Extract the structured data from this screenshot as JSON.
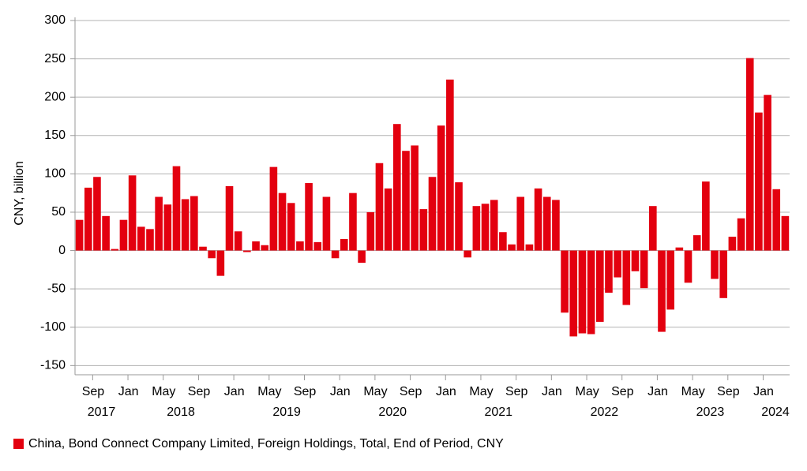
{
  "chart_data": {
    "type": "bar",
    "ylabel": "CNY, billion",
    "categories": [
      null,
      null,
      "Sep",
      null,
      null,
      null,
      "Jan",
      null,
      null,
      null,
      "May",
      null,
      null,
      null,
      "Sep",
      null,
      null,
      null,
      "Jan",
      null,
      null,
      null,
      "May",
      null,
      null,
      null,
      "Sep",
      null,
      null,
      null,
      "Jan",
      null,
      null,
      null,
      "May",
      null,
      null,
      null,
      "Sep",
      null,
      null,
      null,
      "Jan",
      null,
      null,
      null,
      "May",
      null,
      null,
      null,
      "Sep",
      null,
      null,
      null,
      "Jan",
      null,
      null,
      null,
      "May",
      null,
      null,
      null,
      "Sep",
      null,
      null,
      null,
      "Jan",
      null,
      null,
      null,
      "May",
      null,
      null,
      null,
      "Sep",
      null,
      null,
      null,
      "Jan",
      null,
      null
    ],
    "years": [
      "2017",
      "2018",
      "2019",
      "2020",
      "2021",
      "2022",
      "2023",
      "2024"
    ],
    "series": [
      {
        "name": "China, Bond Connect Company Limited, Foreign Holdings, Total, End of Period, CNY",
        "color": "#e3000f",
        "values": [
          40,
          82,
          96,
          45,
          2,
          40,
          98,
          31,
          28,
          70,
          60,
          110,
          67,
          71,
          5,
          -10,
          -33,
          84,
          25,
          -2,
          12,
          7,
          109,
          75,
          62,
          12,
          88,
          11,
          70,
          -10,
          15,
          75,
          -16,
          50,
          114,
          81,
          165,
          130,
          137,
          54,
          96,
          163,
          223,
          89,
          -9,
          58,
          61,
          66,
          24,
          8,
          70,
          8,
          81,
          70,
          66,
          -81,
          -112,
          -108,
          -109,
          -93,
          -55,
          -35,
          -71,
          -27,
          -49,
          58,
          -106,
          -77,
          4,
          -42,
          20,
          90,
          -37,
          -62,
          18,
          42,
          251,
          180,
          203,
          80,
          45
        ]
      }
    ],
    "ylim": [
      -162,
      300
    ],
    "yticks": [
      -150,
      -100,
      -50,
      0,
      50,
      100,
      150,
      200,
      250,
      300
    ],
    "grid": true,
    "legend": "bottom-left"
  }
}
